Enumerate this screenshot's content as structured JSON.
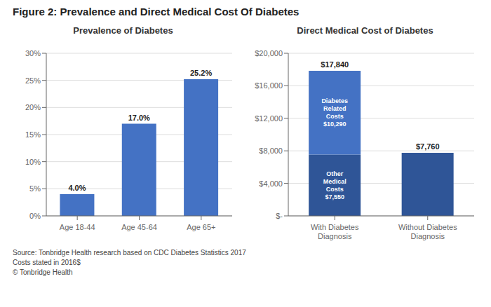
{
  "title": "Figure 2: Prevalence and Direct Medical Cost Of Diabetes",
  "annotations": [
    "Source: Tonbridge Health research based on CDC Diabetes Statistics 2017",
    "Costs stated in 2016$",
    "© Tonbridge Health"
  ],
  "chart_data": [
    {
      "type": "bar",
      "title": "Prevalence of Diabetes",
      "categories": [
        "Age 18-44",
        "Age 45-64",
        "Age 65+"
      ],
      "values": [
        4.0,
        17.0,
        25.2
      ],
      "value_labels": [
        "4.0%",
        "17.0%",
        "25.2%"
      ],
      "data_labels": true,
      "color": "#4472C4",
      "ylim": [
        0,
        30
      ],
      "yticks": [
        {
          "value": 0,
          "label": "0%"
        },
        {
          "value": 5,
          "label": "5%"
        },
        {
          "value": 10,
          "label": "10%"
        },
        {
          "value": 15,
          "label": "15%"
        },
        {
          "value": 20,
          "label": "20%"
        },
        {
          "value": 25,
          "label": "25%"
        },
        {
          "value": 30,
          "label": "30%"
        }
      ],
      "grid": true
    },
    {
      "type": "bar",
      "title": "Direct Medical Cost of Diabetes",
      "stacked": true,
      "categories": [
        "With Diabetes\nDiagnosis",
        "Without Diabetes\nDiagnosis"
      ],
      "series": [
        {
          "color": "#2F5597",
          "values": [
            7550,
            7760
          ],
          "value_labels": [
            "Other\nMedical\nCosts\n$7,550",
            null
          ]
        },
        {
          "color": "#4472C4",
          "values": [
            10290,
            null
          ],
          "value_labels": [
            "Diabetes\nRelated\nCosts\n$10,290",
            null
          ]
        }
      ],
      "totals": [
        17840,
        7760
      ],
      "total_labels": [
        "$17,840",
        "$7,760"
      ],
      "data_labels": true,
      "ylim": [
        0,
        20000
      ],
      "yticks": [
        {
          "value": 0,
          "label": "$-"
        },
        {
          "value": 4000,
          "label": "$4,000"
        },
        {
          "value": 8000,
          "label": "$8,000"
        },
        {
          "value": 12000,
          "label": "$12,000"
        },
        {
          "value": 16000,
          "label": "$16,000"
        },
        {
          "value": 20000,
          "label": "$20,000"
        }
      ],
      "grid": true
    }
  ]
}
